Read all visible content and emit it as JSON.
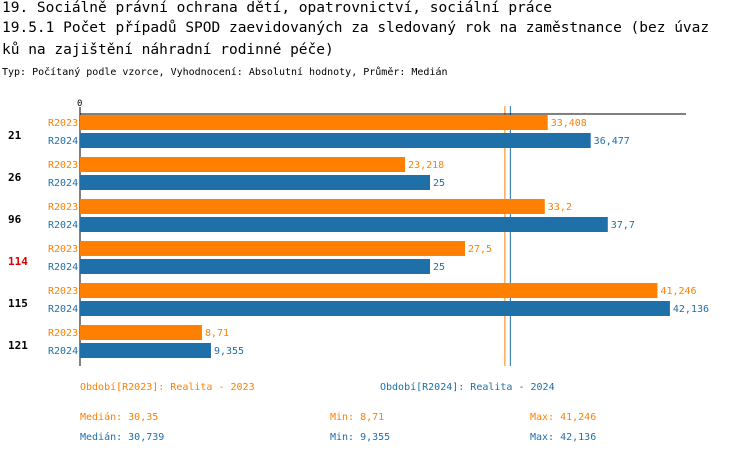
{
  "header": {
    "line1": "19. Sociálně právní ochrana dětí, opatrovnictví, sociální práce",
    "line2": "19.5.1 Počet případů SPOD zaevidovaných za sledovaný rok na zaměstnance (bez úvaz",
    "line3": "ků na zajištění náhradní rodinné péče)",
    "subtitle": "Typ: Počítaný podle vzorce, Vyhodnocení: Absolutní hodnoty, Průměr: Medián"
  },
  "colors": {
    "r2023": "#ff7f00",
    "r2024": "#1f6fa8",
    "highlight": "#dd0000"
  },
  "chart_data": {
    "type": "bar",
    "orientation": "horizontal",
    "axis_zero_label": "0",
    "xlim": [
      0,
      44.8
    ],
    "groups": [
      {
        "label": "21",
        "highlight": false
      },
      {
        "label": "26",
        "highlight": false
      },
      {
        "label": "96",
        "highlight": false
      },
      {
        "label": "114",
        "highlight": true
      },
      {
        "label": "115",
        "highlight": false
      },
      {
        "label": "121",
        "highlight": false
      }
    ],
    "series": [
      {
        "name": "R2023",
        "color": "#ff7f00",
        "values": [
          33.408,
          23.218,
          33.2,
          27.5,
          41.246,
          8.71
        ],
        "labels": [
          "33,408",
          "23,218",
          "33,2",
          "27,5",
          "41,246",
          "8,71"
        ]
      },
      {
        "name": "R2024",
        "color": "#1f6fa8",
        "values": [
          36.477,
          25,
          37.7,
          25,
          42.136,
          9.355
        ],
        "labels": [
          "36,477",
          "25",
          "37,7",
          "25",
          "42,136",
          "9,355"
        ]
      }
    ],
    "median_lines": [
      {
        "series": "R2023",
        "value": 30.35
      },
      {
        "series": "R2024",
        "value": 30.739
      }
    ]
  },
  "footer": {
    "period2023": "Období[R2023]: Realita - 2023",
    "period2024": "Období[R2024]: Realita - 2024",
    "median2023": "Medián: 30,35",
    "min2023": "Min: 8,71",
    "max2023": "Max: 41,246",
    "median2024": "Medián: 30,739",
    "min2024": "Min: 9,355",
    "max2024": "Max: 42,136"
  }
}
